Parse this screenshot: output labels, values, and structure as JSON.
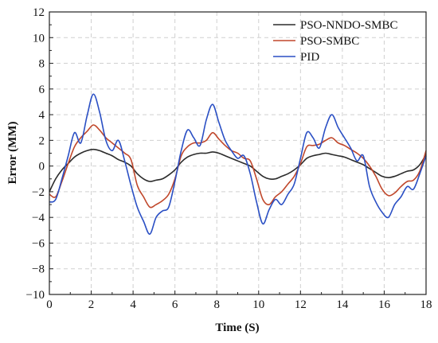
{
  "chart_data": {
    "type": "line",
    "title": "",
    "xlabel": "Time (S)",
    "ylabel": "Error (MM)",
    "xlim": [
      0,
      18
    ],
    "ylim": [
      -10,
      12
    ],
    "xticks": [
      0,
      2,
      4,
      6,
      8,
      10,
      12,
      14,
      16,
      18
    ],
    "yticks": [
      -10,
      -8,
      -6,
      -4,
      -2,
      0,
      2,
      4,
      6,
      8,
      10,
      12
    ],
    "grid": true,
    "legend_position": "top-right",
    "series": [
      {
        "name": "PSO-NNDO-SMBC",
        "color": "#2b2b2b",
        "x": [
          0,
          0.3,
          0.6,
          0.9,
          1.2,
          1.5,
          1.8,
          2.1,
          2.4,
          2.7,
          3.0,
          3.3,
          3.6,
          3.9,
          4.2,
          4.5,
          4.8,
          5.1,
          5.4,
          5.7,
          6.0,
          6.3,
          6.6,
          6.9,
          7.2,
          7.5,
          7.8,
          8.1,
          8.4,
          8.7,
          9.0,
          9.3,
          9.6,
          9.9,
          10.2,
          10.5,
          10.8,
          11.1,
          11.4,
          11.7,
          12.0,
          12.3,
          12.6,
          12.9,
          13.2,
          13.5,
          13.8,
          14.1,
          14.4,
          14.7,
          15.0,
          15.3,
          15.6,
          15.9,
          16.2,
          16.5,
          16.8,
          17.1,
          17.4,
          17.7,
          18.0
        ],
        "values": [
          -2.0,
          -1.0,
          -0.3,
          0.2,
          0.7,
          1.0,
          1.2,
          1.3,
          1.2,
          1.0,
          0.8,
          0.5,
          0.3,
          0.0,
          -0.6,
          -1.0,
          -1.2,
          -1.1,
          -1.0,
          -0.7,
          -0.3,
          0.3,
          0.7,
          0.9,
          1.0,
          1.0,
          1.1,
          1.0,
          0.8,
          0.6,
          0.4,
          0.2,
          0.0,
          -0.4,
          -0.8,
          -1.0,
          -1.0,
          -0.8,
          -0.6,
          -0.3,
          0.1,
          0.6,
          0.8,
          0.9,
          1.0,
          0.9,
          0.8,
          0.7,
          0.5,
          0.3,
          0.1,
          -0.2,
          -0.5,
          -0.8,
          -0.9,
          -0.8,
          -0.6,
          -0.4,
          -0.3,
          0.1,
          0.9
        ]
      },
      {
        "name": "PSO-SMBC",
        "color": "#c0472b",
        "x": [
          0,
          0.3,
          0.6,
          0.9,
          1.2,
          1.5,
          1.8,
          2.1,
          2.4,
          2.7,
          3.0,
          3.3,
          3.6,
          3.9,
          4.2,
          4.5,
          4.8,
          5.1,
          5.4,
          5.7,
          6.0,
          6.3,
          6.6,
          6.9,
          7.2,
          7.5,
          7.8,
          8.1,
          8.4,
          8.7,
          9.0,
          9.3,
          9.6,
          9.9,
          10.2,
          10.5,
          10.8,
          11.1,
          11.4,
          11.7,
          12.0,
          12.3,
          12.6,
          12.9,
          13.2,
          13.5,
          13.8,
          14.1,
          14.4,
          14.7,
          15.0,
          15.3,
          15.6,
          15.9,
          16.2,
          16.5,
          16.8,
          17.1,
          17.4,
          17.7,
          18.0
        ],
        "values": [
          -2.2,
          -2.4,
          -1.2,
          0.2,
          1.5,
          2.2,
          2.7,
          3.2,
          2.8,
          2.2,
          1.8,
          1.4,
          1.0,
          0.5,
          -1.5,
          -2.4,
          -3.2,
          -3.0,
          -2.7,
          -2.2,
          -1.0,
          0.8,
          1.5,
          1.8,
          1.8,
          2.0,
          2.6,
          2.1,
          1.6,
          1.2,
          1.0,
          0.6,
          0.4,
          -1.0,
          -2.6,
          -3.0,
          -2.4,
          -2.0,
          -1.4,
          -0.8,
          0.2,
          1.5,
          1.6,
          1.7,
          2.0,
          2.2,
          1.8,
          1.6,
          1.3,
          1.0,
          0.6,
          0.0,
          -0.8,
          -1.8,
          -2.3,
          -2.1,
          -1.6,
          -1.2,
          -1.1,
          -0.4,
          1.2
        ]
      },
      {
        "name": "PID",
        "color": "#2a4fc4",
        "x": [
          0,
          0.3,
          0.6,
          0.9,
          1.2,
          1.5,
          1.8,
          2.1,
          2.4,
          2.7,
          3.0,
          3.3,
          3.6,
          3.9,
          4.2,
          4.5,
          4.8,
          5.1,
          5.4,
          5.7,
          6.0,
          6.3,
          6.6,
          6.9,
          7.2,
          7.5,
          7.8,
          8.1,
          8.4,
          8.7,
          9.0,
          9.3,
          9.6,
          9.9,
          10.2,
          10.5,
          10.8,
          11.1,
          11.4,
          11.7,
          12.0,
          12.3,
          12.6,
          12.9,
          13.2,
          13.5,
          13.8,
          14.1,
          14.4,
          14.7,
          15.0,
          15.3,
          15.6,
          15.9,
          16.2,
          16.5,
          16.8,
          17.1,
          17.4,
          17.7,
          18.0
        ],
        "values": [
          -2.8,
          -2.6,
          -1.0,
          0.8,
          2.6,
          1.8,
          3.9,
          5.6,
          4.2,
          2.0,
          1.2,
          2.0,
          0.4,
          -1.5,
          -3.2,
          -4.3,
          -5.3,
          -4.0,
          -3.5,
          -3.2,
          -1.2,
          1.2,
          2.8,
          2.2,
          1.6,
          3.6,
          4.8,
          3.4,
          2.0,
          1.2,
          0.6,
          0.8,
          -0.6,
          -2.8,
          -4.5,
          -3.4,
          -2.6,
          -3.0,
          -2.2,
          -1.4,
          0.6,
          2.6,
          2.2,
          1.4,
          3.0,
          4.0,
          3.0,
          2.2,
          1.4,
          0.4,
          0.8,
          -1.6,
          -2.8,
          -3.6,
          -4.0,
          -3.0,
          -2.4,
          -1.6,
          -1.8,
          -0.6,
          0.8
        ]
      }
    ]
  }
}
